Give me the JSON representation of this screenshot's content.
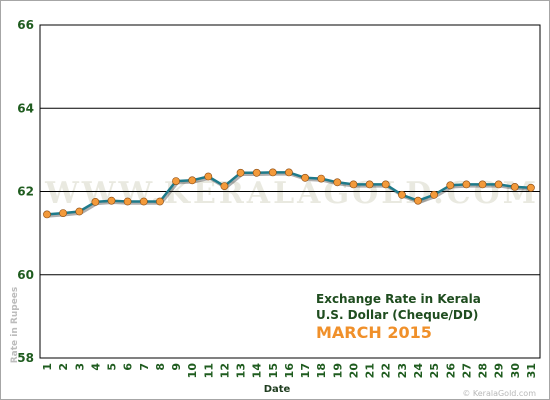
{
  "chart_data": {
    "type": "line",
    "title_lines": [
      "Exchange Rate in Kerala",
      "U.S. Dollar (Cheque/DD)"
    ],
    "subtitle": "MARCH 2015",
    "xlabel": "Date",
    "ylabel": "Rate in Rupees",
    "ylim": [
      58,
      66
    ],
    "yticks": [
      58,
      60,
      62,
      64,
      66
    ],
    "grid": true,
    "x": [
      "1",
      "2",
      "3",
      "4",
      "5",
      "6",
      "7",
      "8",
      "9",
      "10",
      "11",
      "12",
      "13",
      "14",
      "15",
      "16",
      "17",
      "18",
      "19",
      "20",
      "21",
      "22",
      "23",
      "24",
      "25",
      "26",
      "27",
      "28",
      "29",
      "30",
      "31"
    ],
    "series": [
      {
        "values": [
          61.45,
          61.48,
          61.52,
          61.75,
          61.78,
          61.76,
          61.76,
          61.76,
          62.25,
          62.27,
          62.36,
          62.13,
          62.45,
          62.45,
          62.46,
          62.46,
          62.33,
          62.31,
          62.22,
          62.17,
          62.17,
          62.17,
          61.92,
          61.78,
          61.92,
          62.15,
          62.17,
          62.17,
          62.17,
          62.11,
          62.09
        ],
        "color": "#1e7a8a",
        "marker_color": "#f39a3b"
      }
    ]
  },
  "watermark": "WWW.KERALAGOLD.COM",
  "credit": "© KeralaGold.com"
}
